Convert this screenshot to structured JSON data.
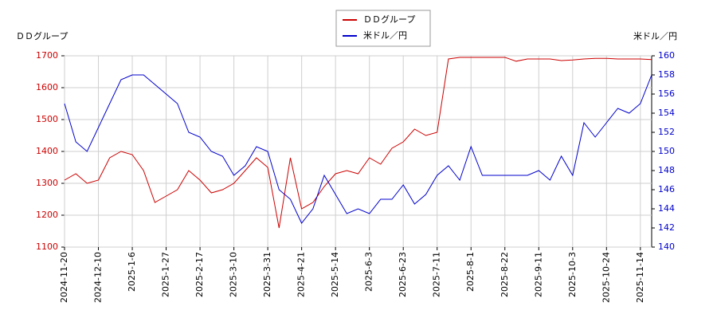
{
  "chart_data": {
    "type": "line",
    "y_label": "ＤＤグループ",
    "y2_label": "米ドル／円",
    "categories": [
      "2024-11-20",
      null,
      null,
      "2024-12-10",
      null,
      null,
      "2025-1-6",
      null,
      null,
      "2025-1-27",
      null,
      null,
      "2025-2-17",
      null,
      null,
      "2025-3-10",
      null,
      null,
      "2025-3-31",
      null,
      null,
      "2025-4-21",
      null,
      null,
      "2025-5-14",
      null,
      null,
      "2025-6-3",
      null,
      null,
      "2025-6-23",
      null,
      null,
      "2025-7-11",
      null,
      null,
      "2025-8-1",
      null,
      null,
      "2025-8-22",
      null,
      null,
      "2025-9-11",
      null,
      null,
      "2025-10-3",
      null,
      null,
      "2025-10-24",
      null,
      null,
      "2025-11-14",
      null
    ],
    "series": [
      {
        "name": "ＤＤグループ",
        "color": "#cc0000",
        "values": [
          1310,
          1330,
          1300,
          1310,
          1380,
          1400,
          1390,
          1340,
          1240,
          1260,
          1280,
          1340,
          1310,
          1270,
          1280,
          1300,
          1340,
          1380,
          1350,
          1160,
          1380,
          1220,
          1240,
          1290,
          1330,
          1340,
          1330,
          1380,
          1360,
          1410,
          1430,
          1470,
          1450,
          1460,
          1690,
          1695,
          1695,
          1695,
          1695,
          1695,
          1683,
          1690,
          1690,
          1690,
          1685,
          1687,
          1690,
          1692,
          1692,
          1690,
          1690,
          1690,
          1688
        ]
      },
      {
        "name": "米ドル／円",
        "color": "#0000cc",
        "axis": "y2",
        "values": [
          155,
          151,
          150,
          152.5,
          155,
          157.5,
          158,
          158,
          157,
          156,
          155,
          152,
          151.5,
          150,
          149.5,
          147.5,
          148.5,
          150.5,
          150,
          146,
          145,
          142.5,
          144,
          147.5,
          145.5,
          143.5,
          144,
          143.5,
          145,
          145,
          146.5,
          144.5,
          145.5,
          147.5,
          148.5,
          147,
          150.5,
          147.5,
          147.5,
          147.5,
          147.5,
          147.5,
          148,
          147,
          149.5,
          147.5,
          153,
          151.5,
          153,
          154.5,
          154,
          155,
          158
        ]
      }
    ],
    "ylim": [
      1100,
      1700
    ],
    "yticks": [
      1100,
      1200,
      1300,
      1400,
      1500,
      1600,
      1700
    ],
    "y2lim": [
      140,
      160
    ],
    "y2ticks": [
      140,
      142,
      144,
      146,
      148,
      150,
      152,
      154,
      156,
      158,
      160
    ],
    "grid": true,
    "legend": "top"
  }
}
